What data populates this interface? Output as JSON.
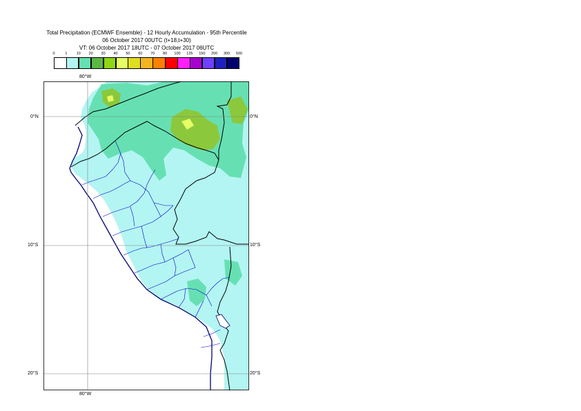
{
  "title": {
    "line1": "Total Precipitation (ECMWF Ensemble) - 12 Hourly Accumulation - 95th Percentile",
    "line2": "06 October 2017 00UTC (t+18,t+30)",
    "line3": "VT: 06 October 2017 18UTC - 07 October 2017 06UTC"
  },
  "legend": {
    "thresholds": [
      "0",
      "1",
      "10",
      "20",
      "30",
      "40",
      "50",
      "60",
      "70",
      "80",
      "100",
      "125",
      "150",
      "200",
      "300",
      "500"
    ],
    "colors": [
      "#ffffff",
      "#b3f5f2",
      "#66e0b3",
      "#5cb845",
      "#8fd615",
      "#e6ff66",
      "#dfdf1f",
      "#f5b520",
      "#ff7f00",
      "#ff0000",
      "#ff1fff",
      "#a800cf",
      "#7040ff",
      "#2020c0",
      "#000070"
    ]
  },
  "axes": {
    "lon_top": "80°W",
    "lon_bottom": "80°W",
    "lat_labels": [
      "0°N",
      "10°S",
      "20°S"
    ]
  },
  "map_colors": {
    "ocean": "#ffffff",
    "light": "#b3f5f2",
    "medium": "#66e0b3",
    "heavy": "#8cc83c",
    "peak": "#e6ff66",
    "coast": "#000070",
    "border": "#000000",
    "admin": "#0000cc",
    "grid": "#7f7f7f"
  }
}
